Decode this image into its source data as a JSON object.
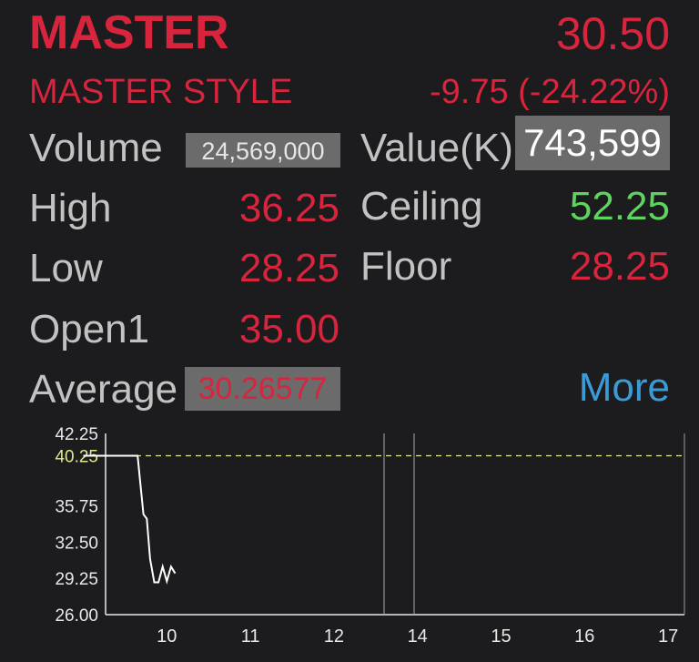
{
  "quote": {
    "symbol": "MASTER",
    "price": "30.50",
    "name": "MASTER STYLE",
    "change": "-9.75 (-24.22%)"
  },
  "stats": {
    "volume_label": "Volume",
    "volume_value": "24,569,000",
    "value_label": "Value(K)",
    "value_value": "743,599",
    "high_label": "High",
    "high_value": "36.25",
    "ceiling_label": "Ceiling",
    "ceiling_value": "52.25",
    "low_label": "Low",
    "low_value": "28.25",
    "floor_label": "Floor",
    "floor_value": "28.25",
    "open_label": "Open1",
    "open_value": "35.00",
    "average_label": "Average",
    "average_value": "30.26577",
    "more_label": "More"
  },
  "colors": {
    "up": "#5fd35f",
    "down": "#d8243c",
    "link": "#3a9bd6",
    "reference": "#e6e68a"
  },
  "chart_data": {
    "type": "line",
    "y_ticks": [
      "42.25",
      "40.25",
      "35.75",
      "32.50",
      "29.25",
      "26.00"
    ],
    "x_ticks": [
      "10",
      "11",
      "12",
      "14",
      "15",
      "16",
      "17"
    ],
    "ylim": [
      26.0,
      42.25
    ],
    "reference_line": 40.25,
    "reference_label": "40.25",
    "series": [
      {
        "points": [
          [
            9.0,
            40.25
          ],
          [
            9.65,
            40.25
          ],
          [
            9.68,
            38.0
          ],
          [
            9.72,
            35.0
          ],
          [
            9.76,
            34.6
          ],
          [
            9.8,
            31.0
          ],
          [
            9.85,
            28.9
          ],
          [
            9.9,
            28.9
          ],
          [
            9.95,
            30.3
          ],
          [
            10.0,
            29.0
          ],
          [
            10.05,
            30.3
          ],
          [
            10.1,
            29.7
          ]
        ]
      }
    ]
  }
}
